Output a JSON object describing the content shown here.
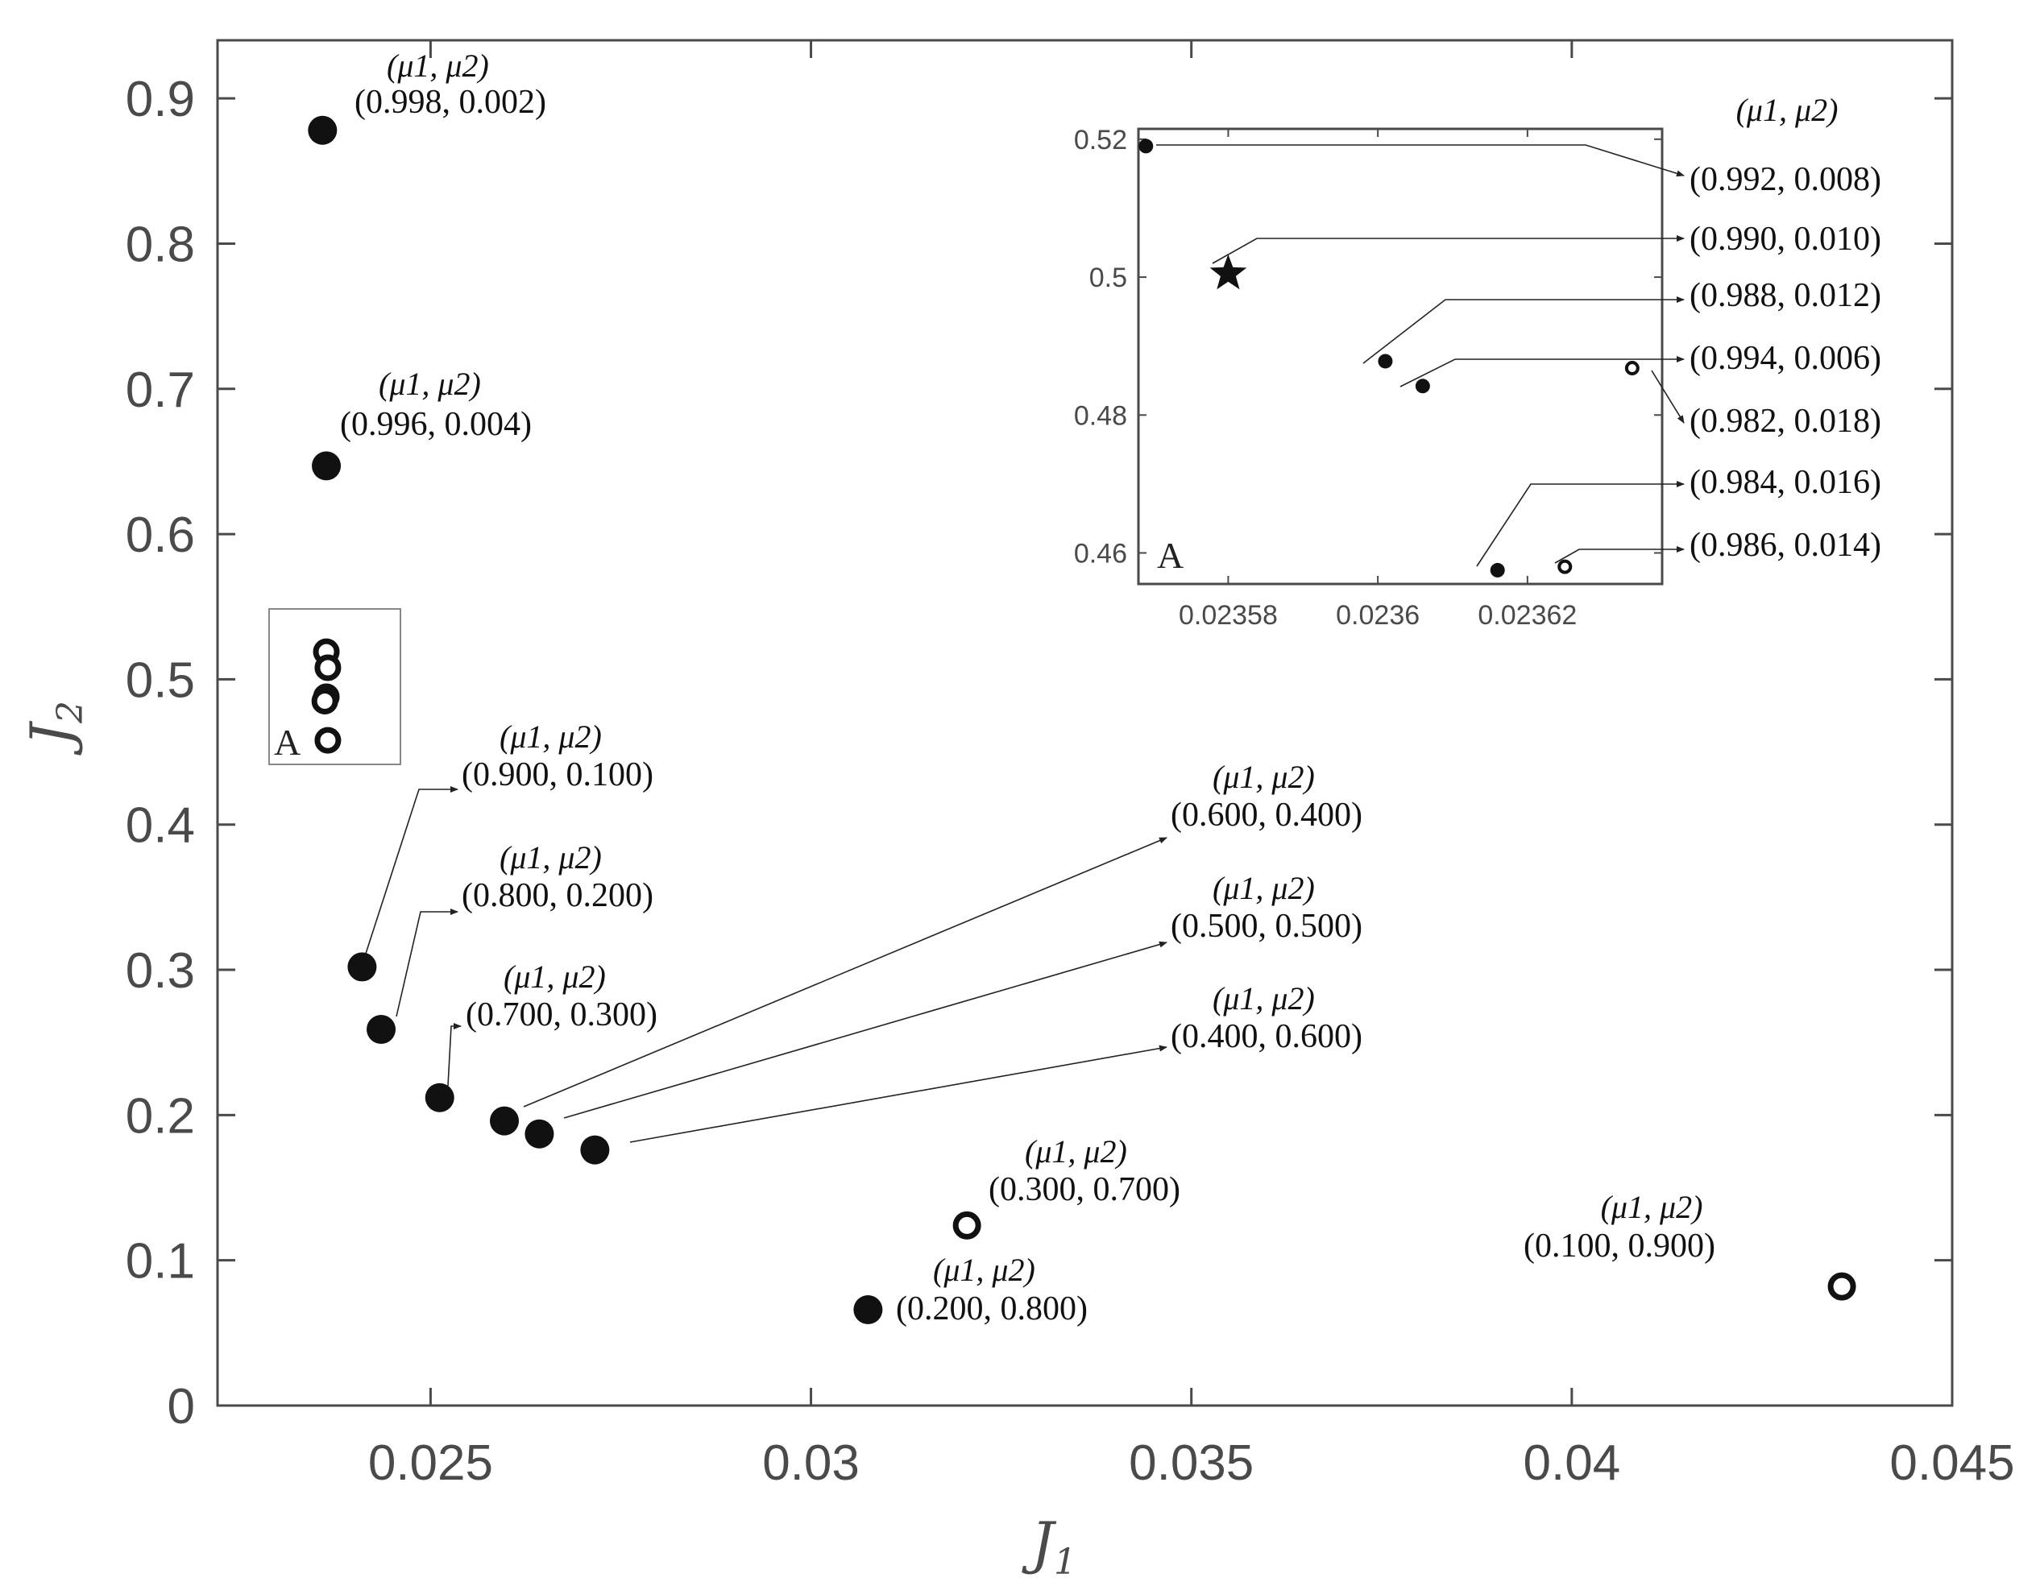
{
  "chart_data": {
    "type": "scatter",
    "xlabel": "J",
    "xlabel_sub": "1",
    "ylabel": "J",
    "ylabel_sub": "2",
    "xlim": [
      0.0222,
      0.045
    ],
    "ylim": [
      0,
      0.94
    ],
    "xticks": [
      0.025,
      0.03,
      0.035,
      0.04,
      0.045
    ],
    "xtick_labels": [
      "0.025",
      "0.03",
      "0.035",
      "0.04",
      "0.045"
    ],
    "yticks": [
      0,
      0.1,
      0.2,
      0.3,
      0.4,
      0.5,
      0.6,
      0.7,
      0.8,
      0.9
    ],
    "ytick_labels": [
      "0",
      "0.1",
      "0.2",
      "0.3",
      "0.4",
      "0.5",
      "0.6",
      "0.7",
      "0.8",
      "0.9"
    ],
    "annotation_header": "(μ1, μ2)",
    "points": [
      {
        "x": 0.02358,
        "y": 0.878,
        "filled": true,
        "label": "(0.998, 0.002)",
        "mu": "(μ1, μ2)"
      },
      {
        "x": 0.02363,
        "y": 0.647,
        "filled": true,
        "label": "(0.996, 0.004)",
        "mu": "(μ1, μ2)"
      },
      {
        "x": 0.0241,
        "y": 0.302,
        "filled": true,
        "label": "(0.900, 0.100)",
        "mu": "(μ1, μ2)"
      },
      {
        "x": 0.02435,
        "y": 0.259,
        "filled": true,
        "label": "(0.800, 0.200)",
        "mu": "(μ1, μ2)"
      },
      {
        "x": 0.02512,
        "y": 0.212,
        "filled": true,
        "label": "(0.700, 0.300)",
        "mu": "(μ1, μ2)"
      },
      {
        "x": 0.02597,
        "y": 0.196,
        "filled": true,
        "label": "(0.600, 0.400)",
        "mu": "(μ1, μ2)"
      },
      {
        "x": 0.02643,
        "y": 0.187,
        "filled": true,
        "label": "(0.500, 0.500)",
        "mu": "(μ1, μ2)"
      },
      {
        "x": 0.02716,
        "y": 0.176,
        "filled": true,
        "label": "(0.400, 0.600)",
        "mu": "(μ1, μ2)"
      },
      {
        "x": 0.03205,
        "y": 0.124,
        "filled": false,
        "label": "(0.300, 0.700)",
        "mu": "(μ1, μ2)"
      },
      {
        "x": 0.03075,
        "y": 0.066,
        "filled": true,
        "label": "(0.200, 0.800)",
        "mu": "(μ1, μ2)"
      },
      {
        "x": 0.04355,
        "y": 0.082,
        "filled": false,
        "label": "(0.100, 0.900)",
        "mu": "(μ1, μ2)"
      }
    ],
    "region_A_points": [
      {
        "x": 0.02363,
        "y": 0.519
      },
      {
        "x": 0.02365,
        "y": 0.508
      },
      {
        "x": 0.02363,
        "y": 0.488
      },
      {
        "x": 0.02361,
        "y": 0.485
      },
      {
        "x": 0.02365,
        "y": 0.458
      }
    ],
    "region_label": "A",
    "inset": {
      "label": "A",
      "xlim": [
        0.023568,
        0.023638
      ],
      "ylim": [
        0.4555,
        0.5215
      ],
      "xticks": [
        0.02358,
        0.0236,
        0.02362
      ],
      "xtick_labels": [
        "0.02358",
        "0.0236",
        "0.02362"
      ],
      "yticks": [
        0.46,
        0.48,
        0.5,
        0.52
      ],
      "ytick_labels": [
        "0.46",
        "0.48",
        "0.5",
        "0.52"
      ],
      "annotation_header": "(μ1, μ2)",
      "points": [
        {
          "x": 0.023569,
          "y": 0.519,
          "marker": "filled",
          "label": "(0.992, 0.008)"
        },
        {
          "x": 0.02358,
          "y": 0.5005,
          "marker": "star",
          "label": "(0.990, 0.010)"
        },
        {
          "x": 0.023601,
          "y": 0.4878,
          "marker": "filled",
          "label": "(0.988, 0.012)"
        },
        {
          "x": 0.023606,
          "y": 0.4842,
          "marker": "filled",
          "label": "(0.994, 0.006)"
        },
        {
          "x": 0.023634,
          "y": 0.4868,
          "marker": "open",
          "label": "(0.982, 0.018)"
        },
        {
          "x": 0.023616,
          "y": 0.4575,
          "marker": "filled",
          "label": "(0.984, 0.016)"
        },
        {
          "x": 0.023625,
          "y": 0.458,
          "marker": "open",
          "label": "(0.986, 0.014)"
        }
      ]
    }
  }
}
